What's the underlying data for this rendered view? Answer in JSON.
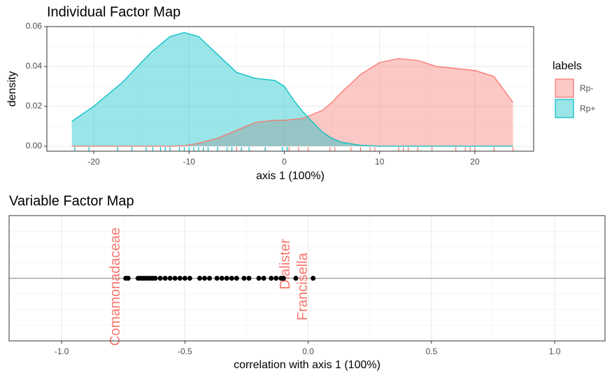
{
  "chart_data": [
    {
      "type": "density",
      "title": "Individual Factor Map",
      "x_label": "axis 1 (100%)",
      "y_label": "density",
      "legend_title": "labels",
      "legend_position": "right",
      "grid": true,
      "xlim": [
        -24.92,
        26.17
      ],
      "ylim": [
        -0.0025,
        0.06
      ],
      "xticks": [
        -20,
        -10,
        0,
        10,
        20
      ],
      "yticks": [
        {
          "value": 0,
          "label": "0.00"
        },
        {
          "value": 0.02,
          "label": "0.02"
        },
        {
          "value": 0.04,
          "label": "0.04"
        },
        {
          "value": 0.06,
          "label": "0.06"
        }
      ],
      "x": [
        -22.3,
        -20,
        -17,
        -14,
        -12,
        -10.5,
        -9,
        -7,
        -5,
        -3,
        -1,
        0,
        1,
        2,
        3,
        4,
        5,
        6,
        8,
        10,
        12,
        14,
        16,
        18,
        20,
        22,
        24
      ],
      "series": [
        {
          "name": "Rp-",
          "color": "#F8766D",
          "values": [
            0,
            0,
            0,
            0,
            0,
            0.0002,
            0.0015,
            0.004,
            0.008,
            0.012,
            0.013,
            0.013,
            0.0135,
            0.014,
            0.016,
            0.018,
            0.022,
            0.027,
            0.036,
            0.042,
            0.044,
            0.043,
            0.04,
            0.039,
            0.038,
            0.035,
            0.022
          ],
          "rug": [
            -5,
            -4.5,
            -2,
            0.5,
            1.5,
            2.5,
            4.8,
            5.3,
            7,
            8,
            9,
            9.5,
            12,
            12.5,
            13,
            14,
            15.5,
            18,
            19,
            19.5,
            20,
            22,
            24
          ]
        },
        {
          "name": "Rp+",
          "color": "#00BFC4",
          "values": [
            0.0125,
            0.02,
            0.032,
            0.047,
            0.055,
            0.057,
            0.055,
            0.046,
            0.037,
            0.034,
            0.033,
            0.03,
            0.023,
            0.017,
            0.012,
            0.007,
            0.004,
            0.002,
            0.0005,
            0,
            0,
            0,
            0,
            0,
            0,
            0,
            0
          ],
          "rug": [
            -22,
            -20.5,
            -17.5,
            -16,
            -14.5,
            -13.8,
            -13,
            -12.5,
            -12,
            -11,
            -10.5,
            -10,
            -9.5,
            -9,
            -8.5,
            -8,
            -7,
            -6,
            -5.5,
            -4.5,
            -3.7,
            -2,
            -0.2,
            0.3
          ]
        }
      ]
    },
    {
      "type": "strip",
      "title": "Variable Factor Map",
      "x_label": "correlation with axis 1 (100%)",
      "grid": true,
      "xlim": [
        -1.213,
        1.204
      ],
      "ylim": [
        -1,
        1
      ],
      "hline": 0,
      "xticks": [
        {
          "value": -1,
          "label": "-1.0"
        },
        -0.5,
        {
          "value": 0,
          "label": "0.0"
        },
        0.5,
        {
          "value": 1,
          "label": "1.0"
        }
      ],
      "point_color": "#000000",
      "label_color": "#F8766D",
      "values": [
        -0.74,
        -0.73,
        -0.69,
        -0.68,
        -0.67,
        -0.66,
        -0.65,
        -0.64,
        -0.63,
        -0.62,
        -0.6,
        -0.58,
        -0.56,
        -0.54,
        -0.52,
        -0.5,
        -0.48,
        -0.44,
        -0.42,
        -0.4,
        -0.37,
        -0.35,
        -0.33,
        -0.31,
        -0.29,
        -0.26,
        -0.24,
        -0.2,
        -0.18,
        -0.15,
        -0.13,
        -0.11,
        -0.1,
        -0.05,
        0.02
      ],
      "labels": [
        "Comamonadaceae",
        null,
        null,
        null,
        null,
        null,
        null,
        null,
        null,
        null,
        null,
        null,
        null,
        null,
        null,
        null,
        null,
        null,
        null,
        null,
        null,
        null,
        null,
        null,
        null,
        null,
        null,
        null,
        null,
        null,
        null,
        null,
        null,
        "Dialister",
        "Francisella"
      ]
    }
  ]
}
